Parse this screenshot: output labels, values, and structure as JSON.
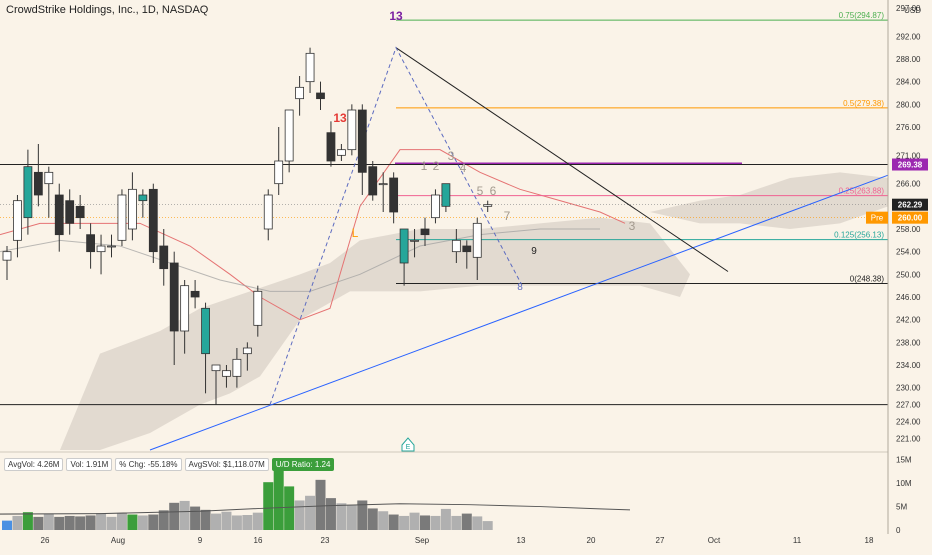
{
  "header": {
    "title": "CrowdStrike Holdings, Inc., 1D, NASDAQ",
    "currency": "USD"
  },
  "volume_stats": {
    "avg_vol": "AvgVol: 4.26M",
    "vol": "Vol: 1.91M",
    "chg": "% Chg: -55.18%",
    "avg_dollar": "AvgSVol: $1,118.07M",
    "ud": "U/D Ratio: 1.24"
  },
  "price_tags": {
    "last": "262.29",
    "pre_label": "Pre",
    "pre": "260.00",
    "line": "269.38"
  },
  "colors": {
    "up": "#26a69a",
    "down": "#333333",
    "bg": "#faf3e8",
    "cloud": "#d9d2c8",
    "fib": "#ff9800",
    "trend": "#2962ff",
    "magenta": "#9c27b0",
    "vol_up": "#3b9e3b",
    "vol_down": "#7a7a7a",
    "vol_blue": "#4a90e2"
  },
  "annotations": {
    "top13": "13",
    "left13": "13",
    "L": "L",
    "nine": "9",
    "e_icon": "E",
    "seq": [
      "1",
      "2",
      "3",
      "4",
      "5",
      "6",
      "7"
    ],
    "eight": "8",
    "three": "3"
  },
  "chart_data": {
    "type": "candlestick",
    "title": "CrowdStrike Holdings, Inc., 1D, NASDAQ",
    "ylim": [
      219,
      297
    ],
    "y_ticks": [
      221.0,
      224.0,
      227.0,
      230.0,
      234.0,
      238.0,
      242.0,
      246.0,
      250.0,
      254.0,
      258.0,
      262.0,
      266.0,
      271.0,
      276.0,
      280.0,
      284.0,
      288.0,
      292.0,
      297.0
    ],
    "x_tick_labels": [
      "26",
      "Aug",
      "9",
      "16",
      "23",
      "Sep",
      "13",
      "20",
      "27",
      "Oct",
      "11",
      "18"
    ],
    "fib_levels": [
      {
        "label": "0.75(294.87)",
        "value": 294.87
      },
      {
        "label": "0.5(279.38)",
        "value": 279.38
      },
      {
        "label": "0.25(263.88)",
        "value": 263.88
      },
      {
        "label": "0.125(256.13)",
        "value": 256.13
      },
      {
        "label": "0(248.38)",
        "value": 248.38
      }
    ],
    "horizontal_lines": [
      269.38,
      227.0
    ],
    "candles": [
      {
        "o": 252.5,
        "h": 255,
        "l": 249,
        "c": 254
      },
      {
        "o": 256,
        "h": 264,
        "l": 253,
        "c": 263
      },
      {
        "o": 260,
        "h": 272,
        "l": 257,
        "c": 269
      },
      {
        "o": 268,
        "h": 273,
        "l": 262,
        "c": 264
      },
      {
        "o": 266,
        "h": 269,
        "l": 260,
        "c": 268
      },
      {
        "o": 264,
        "h": 266,
        "l": 254,
        "c": 257
      },
      {
        "o": 263,
        "h": 265,
        "l": 257,
        "c": 259
      },
      {
        "o": 262,
        "h": 264,
        "l": 258,
        "c": 260
      },
      {
        "o": 257,
        "h": 259,
        "l": 251,
        "c": 254
      },
      {
        "o": 254,
        "h": 257,
        "l": 250,
        "c": 255
      },
      {
        "o": 255,
        "h": 257,
        "l": 253,
        "c": 255
      },
      {
        "o": 256,
        "h": 265,
        "l": 255,
        "c": 264
      },
      {
        "o": 258,
        "h": 268,
        "l": 256,
        "c": 265
      },
      {
        "o": 263,
        "h": 265,
        "l": 260,
        "c": 264
      },
      {
        "o": 265,
        "h": 266,
        "l": 252,
        "c": 254
      },
      {
        "o": 255,
        "h": 258,
        "l": 248,
        "c": 251
      },
      {
        "o": 252,
        "h": 254,
        "l": 234,
        "c": 240
      },
      {
        "o": 240,
        "h": 249,
        "l": 236,
        "c": 248
      },
      {
        "o": 247,
        "h": 249,
        "l": 244,
        "c": 246
      },
      {
        "o": 244,
        "h": 245,
        "l": 229,
        "c": 236
      },
      {
        "o": 233,
        "h": 234,
        "l": 227,
        "c": 234
      },
      {
        "o": 232,
        "h": 234,
        "l": 230,
        "c": 233
      },
      {
        "o": 232,
        "h": 237,
        "l": 230,
        "c": 235
      },
      {
        "o": 236,
        "h": 238,
        "l": 233,
        "c": 237
      },
      {
        "o": 241,
        "h": 248,
        "l": 239,
        "c": 247
      },
      {
        "o": 258,
        "h": 265,
        "l": 256,
        "c": 264
      },
      {
        "o": 266,
        "h": 276,
        "l": 264,
        "c": 270
      },
      {
        "o": 270,
        "h": 279,
        "l": 268,
        "c": 279
      },
      {
        "o": 281,
        "h": 285,
        "l": 278,
        "c": 283
      },
      {
        "o": 284,
        "h": 290,
        "l": 282,
        "c": 289
      },
      {
        "o": 282,
        "h": 284,
        "l": 279,
        "c": 281
      },
      {
        "o": 275,
        "h": 277,
        "l": 269,
        "c": 270
      },
      {
        "o": 271,
        "h": 273,
        "l": 270,
        "c": 272
      },
      {
        "o": 272,
        "h": 280,
        "l": 271,
        "c": 279
      },
      {
        "o": 279,
        "h": 280,
        "l": 264,
        "c": 268
      },
      {
        "o": 269,
        "h": 270,
        "l": 263,
        "c": 264
      },
      {
        "o": 266,
        "h": 268,
        "l": 261,
        "c": 266
      },
      {
        "o": 267,
        "h": 268,
        "l": 259,
        "c": 261
      },
      {
        "o": 252,
        "h": 258,
        "l": 248,
        "c": 258
      },
      {
        "o": 256,
        "h": 258,
        "l": 253,
        "c": 256
      },
      {
        "o": 258,
        "h": 260,
        "l": 255,
        "c": 257
      },
      {
        "o": 260,
        "h": 265,
        "l": 259,
        "c": 264
      },
      {
        "o": 262,
        "h": 266,
        "l": 261,
        "c": 266
      },
      {
        "o": 254,
        "h": 258,
        "l": 252,
        "c": 256
      },
      {
        "o": 255,
        "h": 256,
        "l": 251,
        "c": 254
      },
      {
        "o": 253,
        "h": 260,
        "l": 249,
        "c": 259
      },
      {
        "o": 262,
        "h": 263,
        "l": 261,
        "c": 262.29
      }
    ],
    "volume": [
      2.0,
      3.0,
      3.8,
      2.8,
      3.5,
      2.8,
      3.0,
      2.9,
      3.1,
      3.6,
      2.8,
      3.6,
      3.3,
      3.1,
      3.3,
      4.2,
      5.8,
      6.2,
      5.0,
      4.3,
      3.5,
      3.9,
      3.1,
      3.2,
      3.7,
      10.2,
      14.5,
      9.3,
      6.3,
      7.3,
      10.7,
      6.8,
      5.7,
      5.4,
      6.3,
      4.6,
      4.0,
      3.3,
      3.0,
      3.7,
      3.1,
      3.0,
      4.5,
      3.0,
      3.5,
      2.9,
      1.9
    ],
    "volume_ticks": [
      0,
      5,
      10,
      15
    ],
    "volume_tick_labels": [
      "0",
      "5M",
      "10M",
      "15M"
    ]
  }
}
